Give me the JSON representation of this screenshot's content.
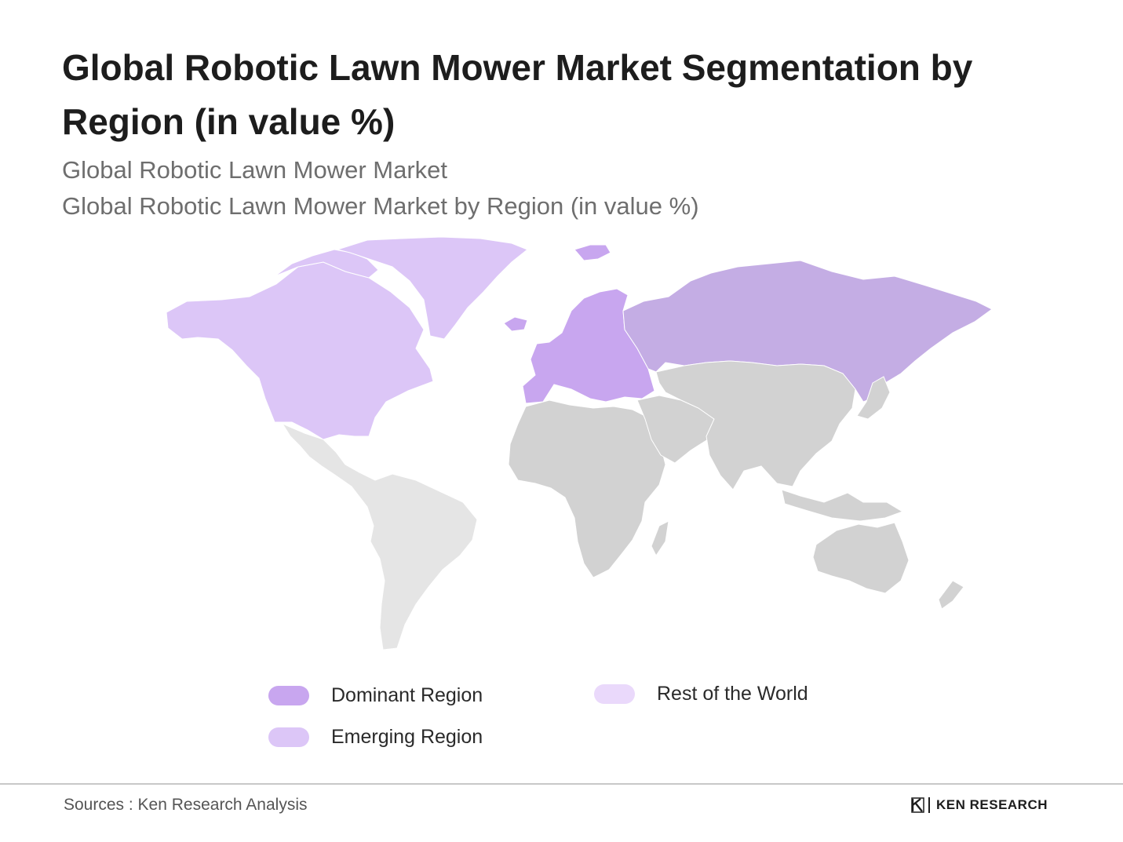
{
  "title": "Global Robotic Lawn Mower Market Segmentation by Region (in value %)",
  "subtitle_1": "Global Robotic Lawn Mower Market",
  "subtitle_2": "Global Robotic Lawn Mower Market by Region (in value %)",
  "colors": {
    "dominant": "#c8a6ef",
    "emerging": "#dcc6f7",
    "rest": "#ead9fb",
    "europe_fill": "#c8a6ef",
    "russia_fill": "#c4ade4",
    "north_america_fill": "#dcc6f7",
    "south_america_fill": "#e5e5e5",
    "rest_land_fill": "#d2d2d2",
    "border": "#ffffff"
  },
  "map": {
    "regions": [
      {
        "id": "north-america",
        "category": "emerging"
      },
      {
        "id": "greenland",
        "category": "emerging"
      },
      {
        "id": "europe",
        "category": "dominant"
      },
      {
        "id": "russia",
        "category": "dominant"
      },
      {
        "id": "latin-america",
        "category": "rest"
      },
      {
        "id": "africa",
        "category": "rest"
      },
      {
        "id": "middle-east",
        "category": "rest"
      },
      {
        "id": "asia",
        "category": "rest"
      },
      {
        "id": "oceania",
        "category": "rest"
      }
    ]
  },
  "legend": {
    "dominant": "Dominant Region",
    "emerging": "Emerging Region",
    "rest": "Rest of the World"
  },
  "source": "Sources : Ken Research Analysis",
  "brand": "KEN RESEARCH",
  "brand_icon": "ken-research-logo-icon"
}
